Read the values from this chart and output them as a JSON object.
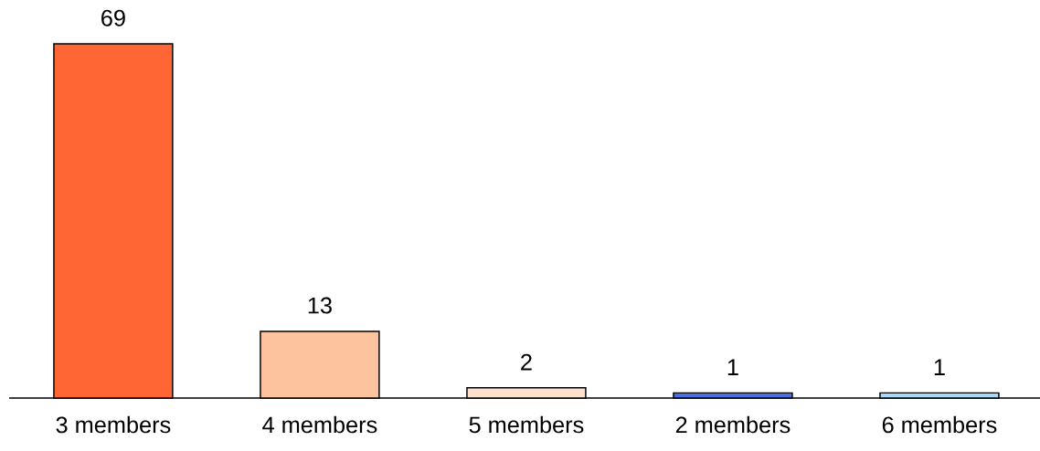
{
  "chart_data": {
    "type": "bar",
    "categories": [
      "3 members",
      "4 members",
      "5 members",
      "2 members",
      "6 members"
    ],
    "values": [
      69,
      13,
      2,
      1,
      1
    ],
    "colors": [
      "#ff6633",
      "#fdc39e",
      "#fde1cf",
      "#4a6fe3",
      "#a8d8f8"
    ],
    "data_labels": true
  }
}
